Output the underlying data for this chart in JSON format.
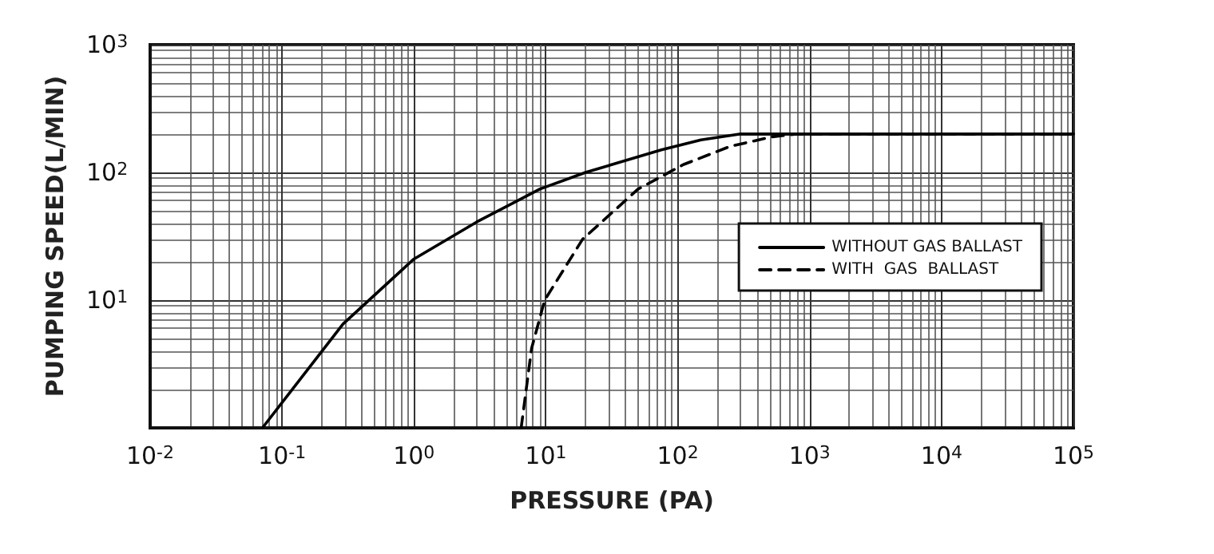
{
  "chart_data": {
    "type": "line",
    "xlabel": "PRESSURE (PA)",
    "ylabel": "PUMPING SPEED(L/MIN)",
    "log": "xy",
    "grid": true,
    "legend": "right",
    "marker": "none",
    "xlim": [
      0.01,
      100000
    ],
    "ylim": [
      1,
      1000
    ],
    "xticks": [
      {
        "value": 0.01,
        "label": "10$^{-2}$"
      },
      {
        "value": 0.1,
        "label": "10$^{-1}$"
      },
      {
        "value": 1,
        "label": "10$^{0}$"
      },
      {
        "value": 10,
        "label": "10$^{1}$"
      },
      {
        "value": 100,
        "label": "10$^{2}$"
      },
      {
        "value": 1000,
        "label": "10$^{3}$"
      },
      {
        "value": 10000,
        "label": "10$^{4}$"
      },
      {
        "value": 100000,
        "label": "10$^{5}$"
      }
    ],
    "yticks": [
      {
        "value": 1,
        "label": null
      },
      {
        "value": 10,
        "label": "10$^{1}$"
      },
      {
        "value": 100,
        "label": "10$^{2}$"
      },
      {
        "value": 1000,
        "label": "10$^{3}$"
      }
    ],
    "series": [
      {
        "name": "WITHOUT GAS BALLAST",
        "color": "#000000",
        "line_style": "solid",
        "x": [
          0.071,
          0.29,
          1,
          3,
          9,
          20,
          75,
          150,
          300,
          100000
        ],
        "values": [
          1,
          6.5,
          21,
          41,
          74,
          100,
          150,
          180,
          200,
          200
        ]
      },
      {
        "name": "WITH  GAS  BALLAST",
        "color": "#000000",
        "line_style": "dashed",
        "x": [
          6.5,
          7.8,
          9.8,
          19,
          50,
          110,
          250,
          520,
          800,
          100000
        ],
        "values": [
          1,
          4.2,
          10,
          30,
          74,
          115,
          160,
          190,
          200,
          200
        ]
      }
    ]
  }
}
